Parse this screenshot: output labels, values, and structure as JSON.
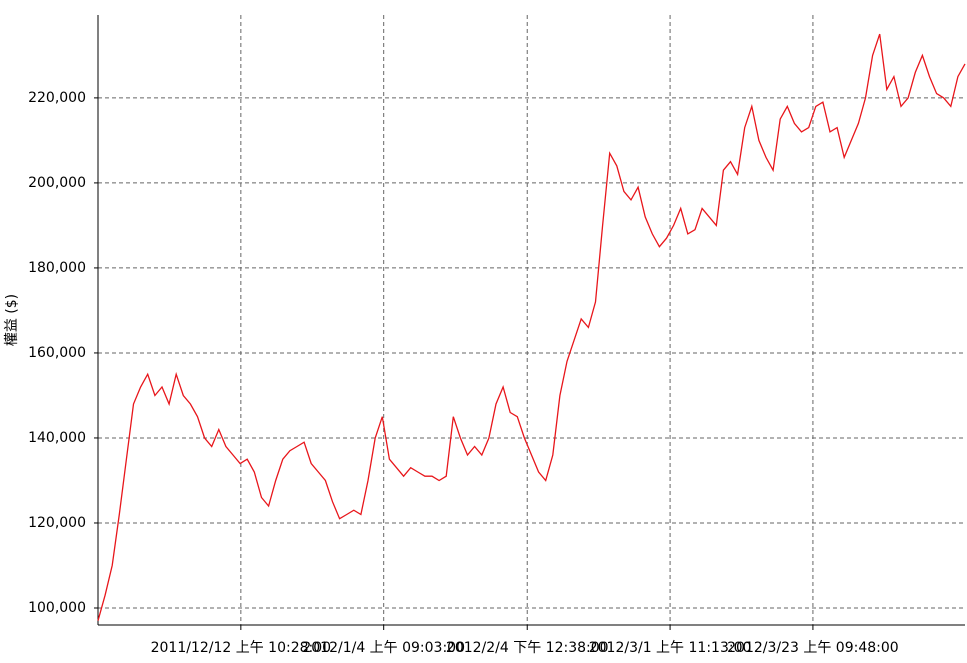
{
  "chart_data": {
    "type": "line",
    "ylabel": "權益 ($)",
    "xlim": [
      0,
      122
    ],
    "xticks": [
      {
        "value": 20.1,
        "label": "2011/12/12 上午 10:28:00"
      },
      {
        "value": 40.2,
        "label": "2012/1/4 上午 09:03:00"
      },
      {
        "value": 60.4,
        "label": "2012/2/4 下午 12:38:00"
      },
      {
        "value": 80.5,
        "label": "2012/3/1 上午 11:13:00"
      },
      {
        "value": 100.6,
        "label": "2012/3/23 上午 09:48:00"
      }
    ],
    "ylim": [
      96000,
      239500
    ],
    "yticks": [
      {
        "value": 100000,
        "label": "100,000"
      },
      {
        "value": 120000,
        "label": "120,000"
      },
      {
        "value": 140000,
        "label": "140,000"
      },
      {
        "value": 160000,
        "label": "160,000"
      },
      {
        "value": 180000,
        "label": "180,000"
      },
      {
        "value": 200000,
        "label": "200,000"
      },
      {
        "value": 220000,
        "label": "220,000"
      }
    ],
    "grid": true,
    "series": [
      {
        "color": "#e8161b",
        "values": [
          97000,
          103000,
          110000,
          122000,
          135000,
          148000,
          152000,
          155000,
          150000,
          152000,
          148000,
          155000,
          150000,
          148000,
          145000,
          140000,
          138000,
          142000,
          138000,
          136000,
          134000,
          135000,
          132000,
          126000,
          124000,
          130000,
          135000,
          137000,
          138000,
          139000,
          134000,
          132000,
          130000,
          125000,
          121000,
          122000,
          123000,
          122000,
          130000,
          140000,
          145000,
          135000,
          133000,
          131000,
          133000,
          132000,
          131000,
          131000,
          130000,
          131000,
          145000,
          140000,
          136000,
          138000,
          136000,
          140000,
          148000,
          152000,
          146000,
          145000,
          140000,
          136000,
          132000,
          130000,
          136000,
          150000,
          158000,
          163000,
          168000,
          166000,
          172000,
          190000,
          207000,
          204000,
          198000,
          196000,
          199000,
          192000,
          188000,
          185000,
          187000,
          190000,
          194000,
          188000,
          189000,
          194000,
          192000,
          190000,
          203000,
          205000,
          202000,
          213000,
          218000,
          210000,
          206000,
          203000,
          215000,
          218000,
          214000,
          212000,
          213000,
          218000,
          219000,
          212000,
          213000,
          206000,
          210000,
          214000,
          220000,
          230000,
          235000,
          222000,
          225000,
          218000,
          220000,
          226000,
          230000,
          225000,
          221000,
          220000,
          218000,
          225000,
          228000
        ]
      }
    ]
  }
}
